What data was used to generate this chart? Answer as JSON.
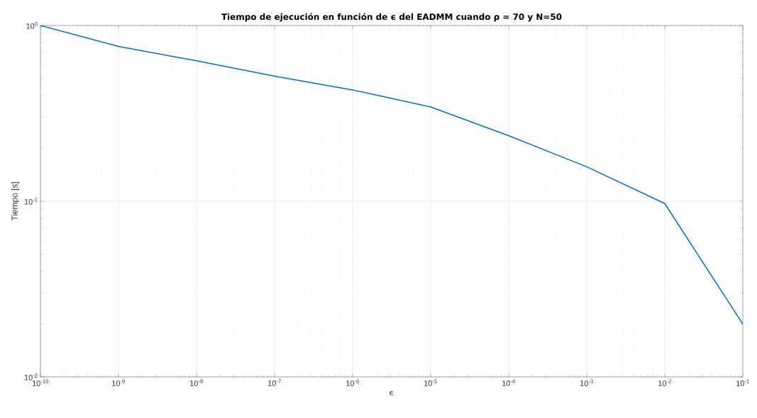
{
  "chart_data": {
    "type": "line",
    "title": "Tiempo de ejecución en función de ϵ del EADMM cuando ρ = 70 y N=50",
    "xlabel": "ϵ",
    "ylabel": "Tiempo [s]",
    "log": "xy",
    "grid": true,
    "xlim": [
      1e-10,
      0.1
    ],
    "ylim": [
      0.01,
      1
    ],
    "xticks": [
      {
        "value": 1e-10,
        "label": "10$^{-10}$"
      },
      {
        "value": 1e-09,
        "label": "10$^{-9}$"
      },
      {
        "value": 1e-08,
        "label": "10$^{-8}$"
      },
      {
        "value": 1e-07,
        "label": "10$^{-7}$"
      },
      {
        "value": 1e-06,
        "label": "10$^{-6}$"
      },
      {
        "value": 1e-05,
        "label": "10$^{-5}$"
      },
      {
        "value": 0.0001,
        "label": "10$^{-4}$"
      },
      {
        "value": 0.001,
        "label": "10$^{-3}$"
      },
      {
        "value": 0.01,
        "label": "10$^{-2}$"
      },
      {
        "value": 0.1,
        "label": "10$^{-1}$"
      }
    ],
    "yticks": [
      {
        "value": 0.01,
        "label": "10$^{-2}$"
      },
      {
        "value": 0.1,
        "label": "10$^{-1}$"
      },
      {
        "value": 1,
        "label": "10$^{0}$"
      }
    ],
    "x": [
      1e-10,
      1e-09,
      1e-08,
      1e-07,
      1e-06,
      1e-05,
      0.0001,
      0.001,
      0.01,
      0.1
    ],
    "series": [
      {
        "color": "#0072bd",
        "values": [
          1.0,
          0.76,
          0.63,
          0.515,
          0.43,
          0.344,
          0.236,
          0.157,
          0.097,
          0.02
        ]
      }
    ]
  }
}
